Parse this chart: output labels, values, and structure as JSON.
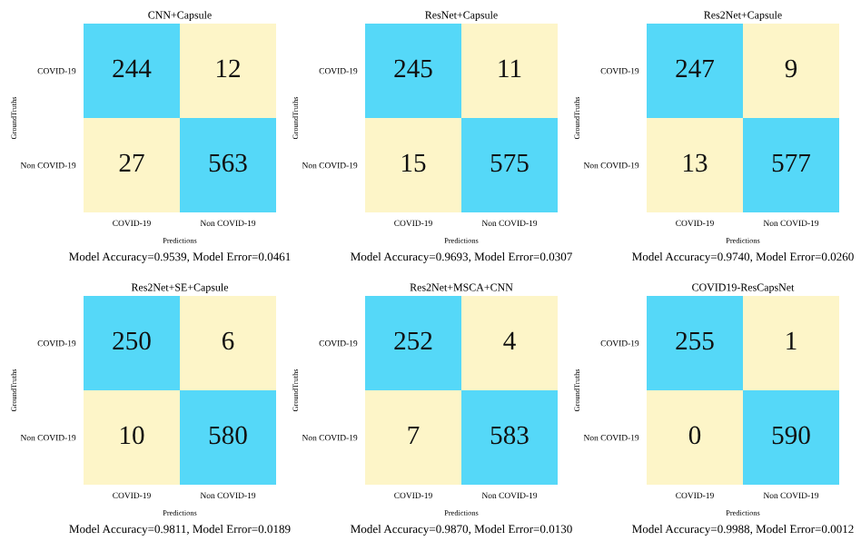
{
  "chart_data": [
    {
      "type": "heatmap",
      "title": "CNN+Capsule",
      "xlabel": "Predictions",
      "ylabel": "GroundTruths",
      "categories": [
        "COVID-19",
        "Non COVID-19"
      ],
      "y_categories": [
        "COVID-19",
        "Non COVID-19"
      ],
      "cells": [
        [
          244,
          12
        ],
        [
          27,
          563
        ]
      ],
      "data_labels": true,
      "colors": [
        "#55d8f8",
        "#fdf5c8"
      ],
      "annotations": [
        "Model Accuracy=0.9539, Model Error=0.0461"
      ]
    },
    {
      "type": "heatmap",
      "title": "ResNet+Capsule",
      "xlabel": "Predictions",
      "ylabel": "GroundTruths",
      "categories": [
        "COVID-19",
        "Non COVID-19"
      ],
      "y_categories": [
        "COVID-19",
        "Non COVID-19"
      ],
      "cells": [
        [
          245,
          11
        ],
        [
          15,
          575
        ]
      ],
      "data_labels": true,
      "colors": [
        "#55d8f8",
        "#fdf5c8"
      ],
      "annotations": [
        "Model Accuracy=0.9693, Model Error=0.0307"
      ]
    },
    {
      "type": "heatmap",
      "title": "Res2Net+Capsule",
      "xlabel": "Predictions",
      "ylabel": "GroundTruths",
      "categories": [
        "COVID-19",
        "Non COVID-19"
      ],
      "y_categories": [
        "COVID-19",
        "Non COVID-19"
      ],
      "cells": [
        [
          247,
          9
        ],
        [
          13,
          577
        ]
      ],
      "data_labels": true,
      "colors": [
        "#55d8f8",
        "#fdf5c8"
      ],
      "annotations": [
        "Model Accuracy=0.9740, Model Error=0.0260"
      ]
    },
    {
      "type": "heatmap",
      "title": "Res2Net+SE+Capsule",
      "xlabel": "Predictions",
      "ylabel": "GroundTruths",
      "categories": [
        "COVID-19",
        "Non COVID-19"
      ],
      "y_categories": [
        "COVID-19",
        "Non COVID-19"
      ],
      "cells": [
        [
          250,
          6
        ],
        [
          10,
          580
        ]
      ],
      "data_labels": true,
      "colors": [
        "#55d8f8",
        "#fdf5c8"
      ],
      "annotations": [
        "Model Accuracy=0.9811, Model Error=0.0189"
      ]
    },
    {
      "type": "heatmap",
      "title": "Res2Net+MSCA+CNN",
      "xlabel": "Predictions",
      "ylabel": "GroundTruths",
      "categories": [
        "COVID-19",
        "Non COVID-19"
      ],
      "y_categories": [
        "COVID-19",
        "Non COVID-19"
      ],
      "cells": [
        [
          252,
          4
        ],
        [
          7,
          583
        ]
      ],
      "data_labels": true,
      "colors": [
        "#55d8f8",
        "#fdf5c8"
      ],
      "annotations": [
        "Model Accuracy=0.9870, Model Error=0.0130"
      ]
    },
    {
      "type": "heatmap",
      "title": "COVID19-ResCapsNet",
      "xlabel": "Predictions",
      "ylabel": "GroundTruths",
      "categories": [
        "COVID-19",
        "Non COVID-19"
      ],
      "y_categories": [
        "COVID-19",
        "Non COVID-19"
      ],
      "cells": [
        [
          255,
          1
        ],
        [
          0,
          590
        ]
      ],
      "data_labels": true,
      "colors": [
        "#55d8f8",
        "#fdf5c8"
      ],
      "annotations": [
        "Model Accuracy=0.9988, Model Error=0.0012"
      ]
    }
  ]
}
